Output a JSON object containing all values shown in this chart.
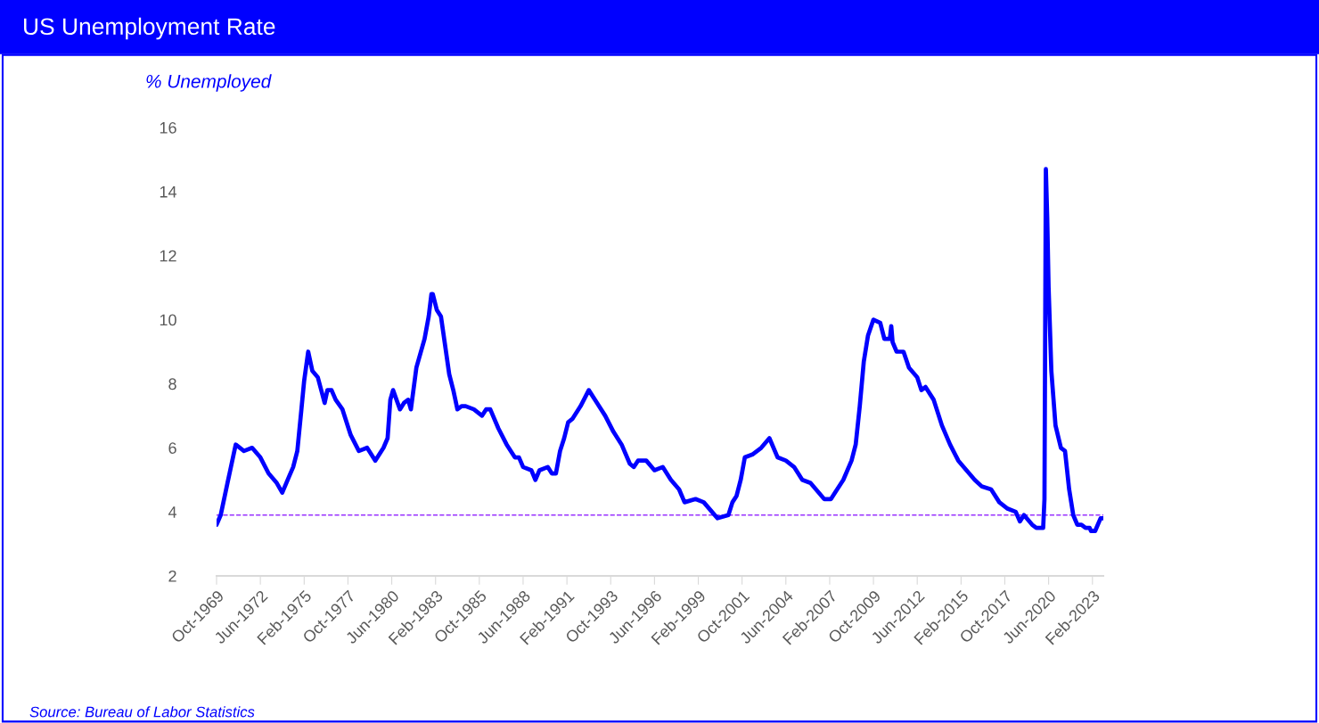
{
  "chart_data": {
    "type": "line",
    "title": "US Unemployment Rate",
    "ylabel": "% Unemployed",
    "annotations": [
      "Source: Bureau of Labor Statistics"
    ],
    "series": [
      {
        "color": "#0000ff",
        "x": [
          "1969-10",
          "1970-01",
          "1970-06",
          "1970-12",
          "1971-06",
          "1971-12",
          "1972-06",
          "1972-12",
          "1973-06",
          "1973-10",
          "1974-03",
          "1974-06",
          "1974-09",
          "1974-12",
          "1975-02",
          "1975-05",
          "1975-08",
          "1975-12",
          "1976-05",
          "1976-07",
          "1976-10",
          "1977-01",
          "1977-06",
          "1977-12",
          "1978-06",
          "1978-12",
          "1979-06",
          "1979-12",
          "1980-03",
          "1980-05",
          "1980-07",
          "1980-12",
          "1981-03",
          "1981-06",
          "1981-08",
          "1981-12",
          "1982-06",
          "1982-09",
          "1982-11",
          "1982-12",
          "1983-03",
          "1983-06",
          "1983-09",
          "1983-12",
          "1984-03",
          "1984-06",
          "1984-09",
          "1984-12",
          "1985-06",
          "1985-12",
          "1986-03",
          "1986-06",
          "1986-12",
          "1987-06",
          "1987-12",
          "1988-03",
          "1988-06",
          "1988-12",
          "1989-03",
          "1989-06",
          "1989-12",
          "1990-03",
          "1990-06",
          "1990-09",
          "1990-12",
          "1991-03",
          "1991-06",
          "1991-12",
          "1992-06",
          "1992-12",
          "1993-06",
          "1993-12",
          "1994-06",
          "1994-12",
          "1995-03",
          "1995-06",
          "1995-12",
          "1996-06",
          "1996-12",
          "1997-06",
          "1997-12",
          "1998-04",
          "1998-12",
          "1999-06",
          "1999-12",
          "2000-04",
          "2000-12",
          "2001-03",
          "2001-06",
          "2001-09",
          "2001-12",
          "2002-06",
          "2002-12",
          "2003-06",
          "2003-12",
          "2004-06",
          "2004-12",
          "2005-06",
          "2005-12",
          "2006-06",
          "2006-10",
          "2007-03",
          "2007-06",
          "2007-12",
          "2008-06",
          "2008-09",
          "2008-12",
          "2009-03",
          "2009-06",
          "2009-10",
          "2010-03",
          "2010-06",
          "2010-10",
          "2010-11",
          "2010-12",
          "2011-03",
          "2011-08",
          "2011-12",
          "2012-06",
          "2012-09",
          "2012-12",
          "2013-06",
          "2013-12",
          "2014-06",
          "2014-12",
          "2015-06",
          "2015-12",
          "2016-05",
          "2016-12",
          "2017-06",
          "2017-12",
          "2018-06",
          "2018-09",
          "2018-12",
          "2019-06",
          "2019-09",
          "2020-02",
          "2020-03",
          "2020-04",
          "2020-05",
          "2020-06",
          "2020-08",
          "2020-11",
          "2021-03",
          "2021-06",
          "2021-09",
          "2021-12",
          "2022-03",
          "2022-06",
          "2022-09",
          "2022-12",
          "2023-01",
          "2023-04",
          "2023-06",
          "2023-08",
          "2023-10"
        ],
        "values": [
          3.6,
          3.9,
          4.9,
          6.1,
          5.9,
          6.0,
          5.7,
          5.2,
          4.9,
          4.6,
          5.1,
          5.4,
          5.9,
          7.2,
          8.1,
          9.0,
          8.4,
          8.2,
          7.4,
          7.8,
          7.8,
          7.5,
          7.2,
          6.4,
          5.9,
          6.0,
          5.6,
          6.0,
          6.3,
          7.5,
          7.8,
          7.2,
          7.4,
          7.5,
          7.2,
          8.5,
          9.4,
          10.1,
          10.8,
          10.8,
          10.3,
          10.1,
          9.2,
          8.3,
          7.8,
          7.2,
          7.3,
          7.3,
          7.2,
          7.0,
          7.2,
          7.2,
          6.6,
          6.1,
          5.7,
          5.7,
          5.4,
          5.3,
          5.0,
          5.3,
          5.4,
          5.2,
          5.2,
          5.9,
          6.3,
          6.8,
          6.9,
          7.3,
          7.8,
          7.4,
          7.0,
          6.5,
          6.1,
          5.5,
          5.4,
          5.6,
          5.6,
          5.3,
          5.4,
          5.0,
          4.7,
          4.3,
          4.4,
          4.3,
          4.0,
          3.8,
          3.9,
          4.3,
          4.5,
          5.0,
          5.7,
          5.8,
          6.0,
          6.3,
          5.7,
          5.6,
          5.4,
          5.0,
          4.9,
          4.6,
          4.4,
          4.4,
          4.6,
          5.0,
          5.6,
          6.1,
          7.3,
          8.7,
          9.5,
          10.0,
          9.9,
          9.4,
          9.4,
          9.8,
          9.3,
          9.0,
          9.0,
          8.5,
          8.2,
          7.8,
          7.9,
          7.5,
          6.7,
          6.1,
          5.6,
          5.3,
          5.0,
          4.8,
          4.7,
          4.3,
          4.1,
          4.0,
          3.7,
          3.9,
          3.6,
          3.5,
          3.5,
          4.4,
          14.7,
          13.2,
          11.0,
          8.4,
          6.7,
          6.0,
          5.9,
          4.7,
          3.9,
          3.6,
          3.6,
          3.5,
          3.5,
          3.4,
          3.4,
          3.6,
          3.8,
          3.8
        ]
      }
    ],
    "xlim": [
      "1969-10",
      "2023-10"
    ],
    "xticks": [
      {
        "value": "1969-10",
        "label": "Oct-1969"
      },
      {
        "value": "1972-06",
        "label": "Jun-1972"
      },
      {
        "value": "1975-02",
        "label": "Feb-1975"
      },
      {
        "value": "1977-10",
        "label": "Oct-1977"
      },
      {
        "value": "1980-06",
        "label": "Jun-1980"
      },
      {
        "value": "1983-02",
        "label": "Feb-1983"
      },
      {
        "value": "1985-10",
        "label": "Oct-1985"
      },
      {
        "value": "1988-06",
        "label": "Jun-1988"
      },
      {
        "value": "1991-02",
        "label": "Feb-1991"
      },
      {
        "value": "1993-10",
        "label": "Oct-1993"
      },
      {
        "value": "1996-06",
        "label": "Jun-1996"
      },
      {
        "value": "1999-02",
        "label": "Feb-1999"
      },
      {
        "value": "2001-10",
        "label": "Oct-2001"
      },
      {
        "value": "2004-06",
        "label": "Jun-2004"
      },
      {
        "value": "2007-02",
        "label": "Feb-2007"
      },
      {
        "value": "2009-10",
        "label": "Oct-2009"
      },
      {
        "value": "2012-06",
        "label": "Jun-2012"
      },
      {
        "value": "2015-02",
        "label": "Feb-2015"
      },
      {
        "value": "2017-10",
        "label": "Oct-2017"
      },
      {
        "value": "2020-06",
        "label": "Jun-2020"
      },
      {
        "value": "2023-02",
        "label": "Feb-2023"
      }
    ],
    "ylim": [
      2,
      16
    ],
    "yticks": [
      2,
      4,
      6,
      8,
      10,
      12,
      14,
      16
    ],
    "ref_lines": [
      {
        "axis": "y",
        "value": 3.9,
        "color": "#9933ff",
        "line_style": "dashed"
      }
    ],
    "line_style": "solid"
  }
}
